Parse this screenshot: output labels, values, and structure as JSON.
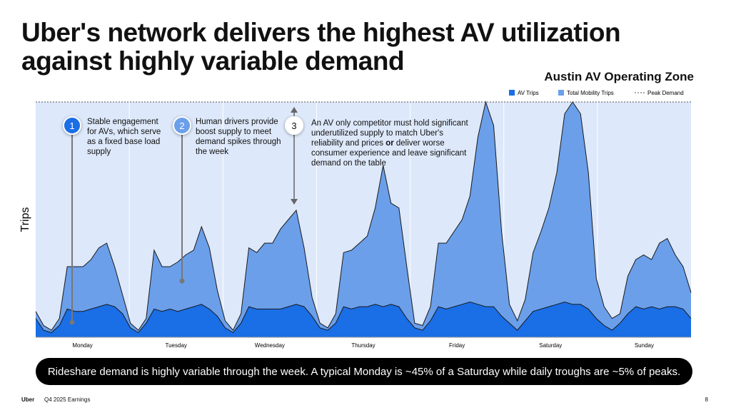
{
  "header": {
    "title": "Uber's network delivers the highest AV utilization against highly variable demand",
    "subtitle": "Austin AV Operating Zone"
  },
  "chart_data": {
    "type": "area",
    "y_label": "Trips",
    "categories": [
      "Monday",
      "Tuesday",
      "Wednesday",
      "Thursday",
      "Friday",
      "Saturday",
      "Sunday"
    ],
    "ylim": [
      0,
      100
    ],
    "peak_demand": 100,
    "peak_label": "Peak Demand",
    "series": [
      {
        "name": "Total Mobility Trips",
        "color": "#6b9fea",
        "values": [
          [
            11,
            5,
            3,
            8,
            30,
            30,
            30,
            33,
            38,
            40,
            30,
            18
          ],
          [
            6,
            3,
            8,
            37,
            30,
            30,
            32,
            35,
            37,
            47,
            38,
            20
          ],
          [
            7,
            3,
            10,
            38,
            36,
            40,
            40,
            46,
            50,
            54,
            38,
            17
          ],
          [
            6,
            4,
            10,
            36,
            37,
            40,
            43,
            55,
            73,
            57,
            55,
            30
          ],
          [
            6,
            5,
            13,
            40,
            40,
            45,
            50,
            60,
            85,
            100,
            90,
            45
          ],
          [
            14,
            7,
            16,
            36,
            45,
            55,
            70,
            95,
            100,
            95,
            70,
            25
          ],
          [
            13,
            8,
            10,
            26,
            33,
            35,
            33,
            40,
            42,
            35,
            30,
            19
          ]
        ]
      },
      {
        "name": "AV Trips",
        "color": "#1a6ee6",
        "values": [
          [
            8,
            3,
            2,
            5,
            12,
            11,
            11,
            12,
            13,
            14,
            13,
            10
          ],
          [
            4,
            2,
            6,
            12,
            11,
            12,
            11,
            12,
            13,
            14,
            12,
            9
          ],
          [
            4,
            2,
            6,
            13,
            12,
            12,
            12,
            12,
            13,
            14,
            13,
            9
          ],
          [
            4,
            3,
            6,
            13,
            12,
            13,
            13,
            14,
            13,
            14,
            13,
            8
          ],
          [
            4,
            3,
            7,
            13,
            12,
            13,
            14,
            15,
            14,
            13,
            13,
            9
          ],
          [
            6,
            3,
            7,
            11,
            12,
            13,
            14,
            15,
            14,
            14,
            12,
            8
          ],
          [
            5,
            3,
            6,
            10,
            13,
            12,
            13,
            12,
            13,
            13,
            12,
            8
          ]
        ]
      }
    ]
  },
  "annotations": [
    {
      "number": "1",
      "text": "Stable engagement for AVs, which serve as a fixed base load supply"
    },
    {
      "number": "2",
      "text": "Human drivers provide boost supply to meet demand spikes through the week"
    },
    {
      "number": "3",
      "text_parts": [
        "An AV only competitor must hold significant underutilized supply to match Uber's reliability and prices ",
        "or",
        " deliver worse consumer experience and leave significant demand on the table"
      ]
    }
  ],
  "banner": "Rideshare demand is highly variable through the week. A typical Monday is ~45% of a Saturday while daily troughs are ~5% of peaks.",
  "footer": {
    "brand": "Uber",
    "report": "Q4 2025 Earnings",
    "page": "8"
  }
}
